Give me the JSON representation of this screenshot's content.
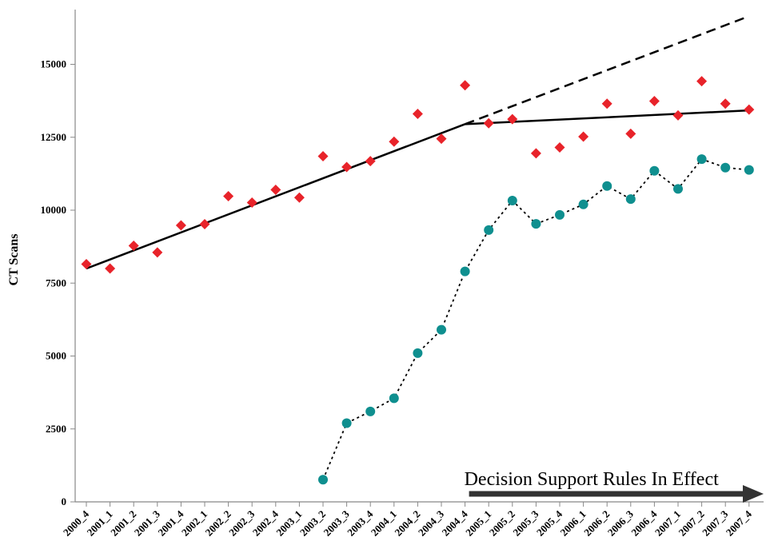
{
  "chart_data": {
    "type": "scatter",
    "title": "",
    "xlabel": "",
    "ylabel": "CT Scans",
    "categories": [
      "2000_4",
      "2001_1",
      "2001_2",
      "2001_3",
      "2001_4",
      "2002_1",
      "2002_2",
      "2002_3",
      "2002_4",
      "2003_1",
      "2003_2",
      "2003_3",
      "2003_4",
      "2004_1",
      "2004_2",
      "2004_3",
      "2004_4",
      "2005_1",
      "2005_2",
      "2005_3",
      "2005_4",
      "2006_1",
      "2006_2",
      "2006_3",
      "2006_4",
      "2007_1",
      "2007_2",
      "2007_3",
      "2007_4"
    ],
    "ylim": [
      0,
      17000
    ],
    "yticks": [
      0,
      2500,
      5000,
      7500,
      10000,
      12500,
      15000
    ],
    "grid": false,
    "series": [
      {
        "marker": "diamond",
        "color": "#e8232a",
        "values": [
          8150,
          8000,
          8780,
          8550,
          9480,
          9520,
          10480,
          10260,
          10700,
          10430,
          11850,
          11480,
          11680,
          12350,
          13300,
          12450,
          14280,
          12980,
          13120,
          11950,
          12150,
          12520,
          13650,
          12620,
          13740,
          13250,
          14420,
          13650,
          13450
        ]
      },
      {
        "marker": "circle",
        "color": "#0f8f8f",
        "line": "dotted",
        "values": [
          null,
          null,
          null,
          null,
          null,
          null,
          null,
          null,
          null,
          null,
          760,
          2700,
          3100,
          3550,
          5100,
          5900,
          7900,
          9320,
          10330,
          9530,
          9840,
          10200,
          10830,
          10380,
          11350,
          10730,
          11750,
          11460,
          11380
        ]
      }
    ],
    "trend_lines": [
      {
        "style": "solid",
        "color": "#000000",
        "x": [
          "2000_4",
          "2004_4"
        ],
        "y": [
          8000,
          12950
        ]
      },
      {
        "style": "dashed",
        "color": "#000000",
        "x": [
          "2004_4",
          "2007_4"
        ],
        "y": [
          12950,
          16650
        ]
      },
      {
        "style": "solid",
        "color": "#000000",
        "x": [
          "2004_4",
          "2007_4"
        ],
        "y": [
          12950,
          13420
        ]
      }
    ],
    "annotations": [
      {
        "text": "Decision Support Rules In Effect",
        "from": "2004_4",
        "to": "2007_4",
        "arrow": true
      }
    ]
  }
}
